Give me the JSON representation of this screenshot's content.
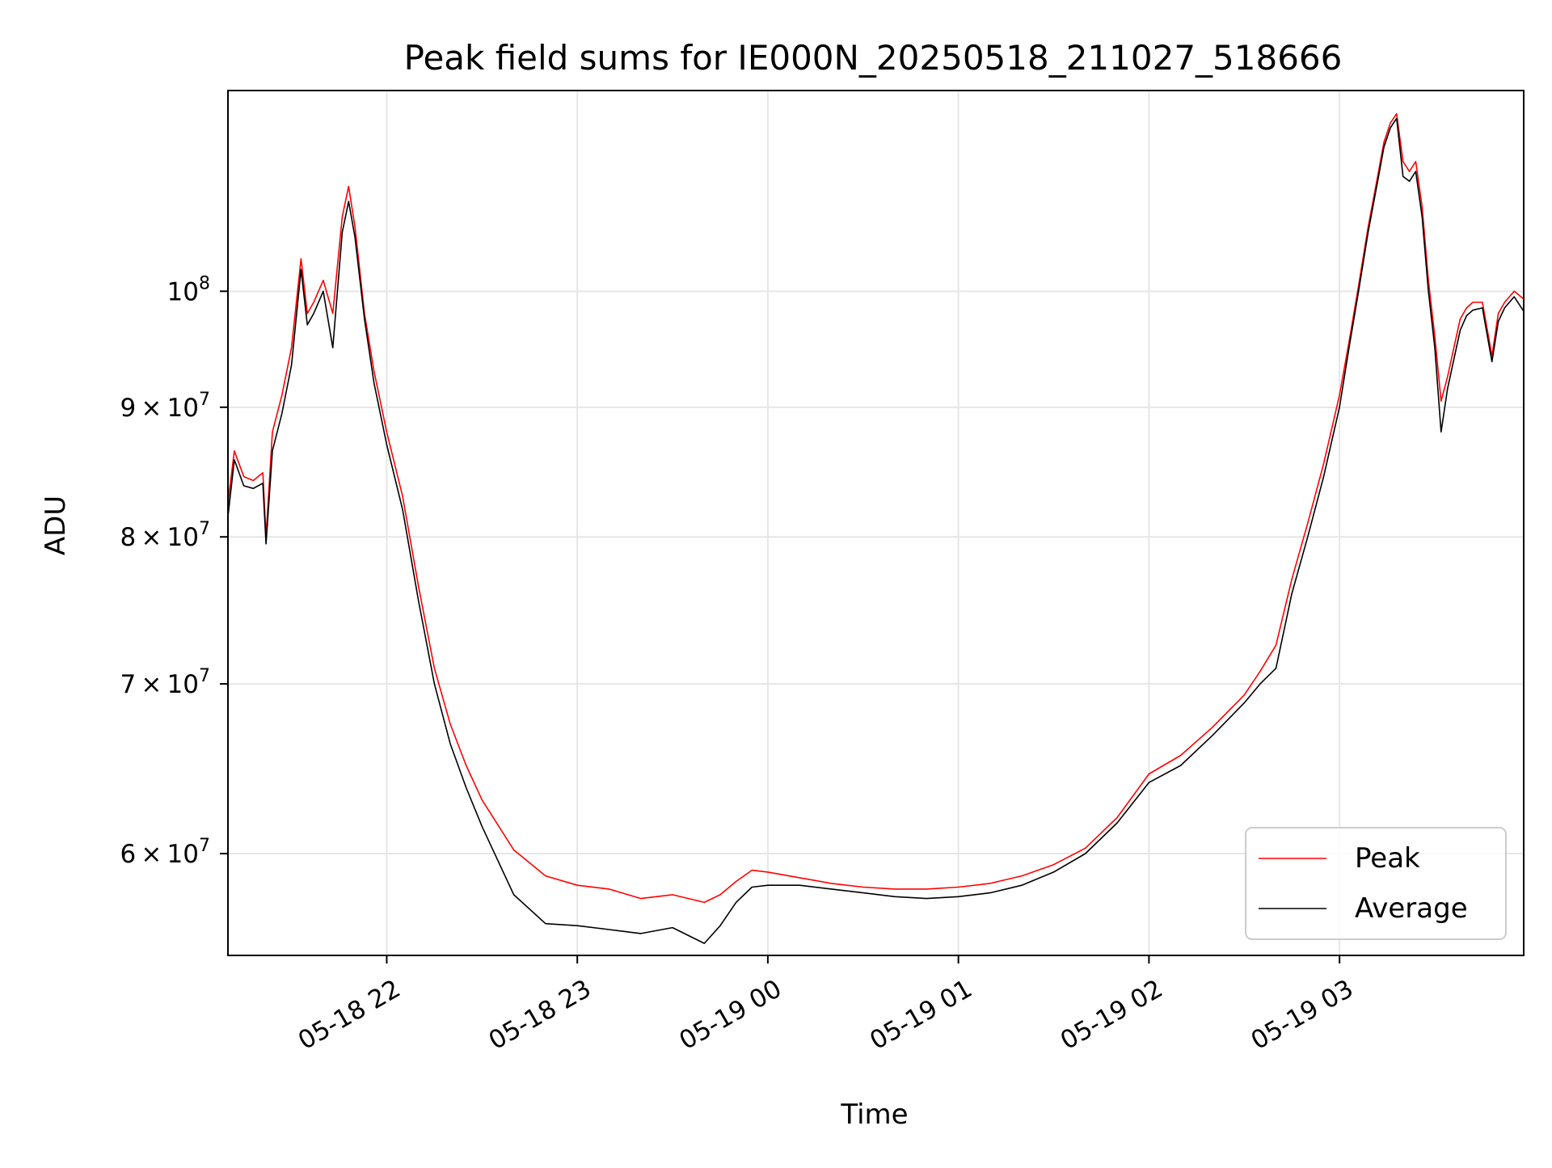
{
  "chart_data": {
    "type": "line",
    "title": "Peak field sums for IE000N_20250518_211027_518666",
    "xlabel": "Time",
    "ylabel": "ADU",
    "yscale": "log",
    "grid": true,
    "legend_placement": "lower-right",
    "xlim": [
      "2025-05-18 21:10",
      "2025-05-19 03:58"
    ],
    "ylim": [
      54700000,
      120000000
    ],
    "x_ticks": [
      {
        "value": "2025-05-18 22:00",
        "label": "05-18 22"
      },
      {
        "value": "2025-05-18 23:00",
        "label": "05-18 23"
      },
      {
        "value": "2025-05-19 00:00",
        "label": "05-19 00"
      },
      {
        "value": "2025-05-19 01:00",
        "label": "05-19 01"
      },
      {
        "value": "2025-05-19 02:00",
        "label": "05-19 02"
      },
      {
        "value": "2025-05-19 03:00",
        "label": "05-19 03"
      }
    ],
    "y_ticks": [
      {
        "value": 60000000,
        "mantissa": "6",
        "exponent": "7"
      },
      {
        "value": 70000000,
        "mantissa": "7",
        "exponent": "7"
      },
      {
        "value": 80000000,
        "mantissa": "8",
        "exponent": "7"
      },
      {
        "value": 90000000,
        "mantissa": "9",
        "exponent": "7"
      },
      {
        "value": 100000000,
        "mantissa": "",
        "exponent": "8"
      }
    ],
    "series": [
      {
        "name": "Peak",
        "color": "#ff0000",
        "x": [
          "2025-05-18 21:10",
          "2025-05-18 21:12",
          "2025-05-18 21:15",
          "2025-05-18 21:18",
          "2025-05-18 21:21",
          "2025-05-18 21:22",
          "2025-05-18 21:24",
          "2025-05-18 21:27",
          "2025-05-18 21:30",
          "2025-05-18 21:33",
          "2025-05-18 21:35",
          "2025-05-18 21:37",
          "2025-05-18 21:40",
          "2025-05-18 21:43",
          "2025-05-18 21:46",
          "2025-05-18 21:48",
          "2025-05-18 21:50",
          "2025-05-18 21:53",
          "2025-05-18 21:56",
          "2025-05-18 22:00",
          "2025-05-18 22:05",
          "2025-05-18 22:10",
          "2025-05-18 22:15",
          "2025-05-18 22:20",
          "2025-05-18 22:25",
          "2025-05-18 22:30",
          "2025-05-18 22:40",
          "2025-05-18 22:50",
          "2025-05-18 23:00",
          "2025-05-18 23:10",
          "2025-05-18 23:20",
          "2025-05-18 23:30",
          "2025-05-18 23:40",
          "2025-05-18 23:45",
          "2025-05-18 23:50",
          "2025-05-18 23:55",
          "2025-05-19 00:00",
          "2025-05-19 00:10",
          "2025-05-19 00:20",
          "2025-05-19 00:30",
          "2025-05-19 00:40",
          "2025-05-19 00:50",
          "2025-05-19 01:00",
          "2025-05-19 01:10",
          "2025-05-19 01:20",
          "2025-05-19 01:30",
          "2025-05-19 01:40",
          "2025-05-19 01:50",
          "2025-05-19 02:00",
          "2025-05-19 02:10",
          "2025-05-19 02:20",
          "2025-05-19 02:30",
          "2025-05-19 02:35",
          "2025-05-19 02:40",
          "2025-05-19 02:45",
          "2025-05-19 02:50",
          "2025-05-19 02:55",
          "2025-05-19 03:00",
          "2025-05-19 03:03",
          "2025-05-19 03:06",
          "2025-05-19 03:09",
          "2025-05-19 03:12",
          "2025-05-19 03:14",
          "2025-05-19 03:16",
          "2025-05-19 03:18",
          "2025-05-19 03:20",
          "2025-05-19 03:22",
          "2025-05-19 03:24",
          "2025-05-19 03:26",
          "2025-05-19 03:28",
          "2025-05-19 03:30",
          "2025-05-19 03:32",
          "2025-05-19 03:34",
          "2025-05-19 03:36",
          "2025-05-19 03:38",
          "2025-05-19 03:40",
          "2025-05-19 03:42",
          "2025-05-19 03:45",
          "2025-05-19 03:48",
          "2025-05-19 03:50",
          "2025-05-19 03:52",
          "2025-05-19 03:55",
          "2025-05-19 03:58"
        ],
        "values": [
          82500000,
          86500000,
          84500000,
          84200000,
          84800000,
          80000000,
          88000000,
          91000000,
          95000000,
          103000000,
          98000000,
          99000000,
          101000000,
          98000000,
          107000000,
          110000000,
          106000000,
          98000000,
          93000000,
          88000000,
          83000000,
          76500000,
          71000000,
          67500000,
          65000000,
          63000000,
          60200000,
          58800000,
          58300000,
          58100000,
          57600000,
          57800000,
          57400000,
          57800000,
          58500000,
          59100000,
          59000000,
          58700000,
          58400000,
          58200000,
          58100000,
          58100000,
          58200000,
          58400000,
          58800000,
          59400000,
          60300000,
          62000000,
          64500000,
          65600000,
          67300000,
          69300000,
          70800000,
          72500000,
          77000000,
          81000000,
          85500000,
          91000000,
          95500000,
          100500000,
          106000000,
          111000000,
          114500000,
          116500000,
          117500000,
          112500000,
          111500000,
          112500000,
          108000000,
          101000000,
          96000000,
          90500000,
          92500000,
          95000000,
          97500000,
          98500000,
          99000000,
          99000000,
          94300000,
          98000000,
          99000000,
          100000000,
          99300000
        ]
      },
      {
        "name": "Average",
        "color": "#000000",
        "x": [
          "2025-05-18 21:10",
          "2025-05-18 21:12",
          "2025-05-18 21:15",
          "2025-05-18 21:18",
          "2025-05-18 21:21",
          "2025-05-18 21:22",
          "2025-05-18 21:24",
          "2025-05-18 21:27",
          "2025-05-18 21:30",
          "2025-05-18 21:33",
          "2025-05-18 21:35",
          "2025-05-18 21:37",
          "2025-05-18 21:40",
          "2025-05-18 21:43",
          "2025-05-18 21:46",
          "2025-05-18 21:48",
          "2025-05-18 21:50",
          "2025-05-18 21:53",
          "2025-05-18 21:56",
          "2025-05-18 22:00",
          "2025-05-18 22:05",
          "2025-05-18 22:10",
          "2025-05-18 22:15",
          "2025-05-18 22:20",
          "2025-05-18 22:25",
          "2025-05-18 22:30",
          "2025-05-18 22:40",
          "2025-05-18 22:50",
          "2025-05-18 23:00",
          "2025-05-18 23:10",
          "2025-05-18 23:20",
          "2025-05-18 23:30",
          "2025-05-18 23:40",
          "2025-05-18 23:45",
          "2025-05-18 23:50",
          "2025-05-18 23:55",
          "2025-05-19 00:00",
          "2025-05-19 00:10",
          "2025-05-19 00:20",
          "2025-05-19 00:30",
          "2025-05-19 00:40",
          "2025-05-19 00:50",
          "2025-05-19 01:00",
          "2025-05-19 01:10",
          "2025-05-19 01:20",
          "2025-05-19 01:30",
          "2025-05-19 01:40",
          "2025-05-19 01:50",
          "2025-05-19 02:00",
          "2025-05-19 02:10",
          "2025-05-19 02:20",
          "2025-05-19 02:30",
          "2025-05-19 02:35",
          "2025-05-19 02:40",
          "2025-05-19 02:45",
          "2025-05-19 02:50",
          "2025-05-19 02:55",
          "2025-05-19 03:00",
          "2025-05-19 03:03",
          "2025-05-19 03:06",
          "2025-05-19 03:09",
          "2025-05-19 03:12",
          "2025-05-19 03:14",
          "2025-05-19 03:16",
          "2025-05-19 03:18",
          "2025-05-19 03:20",
          "2025-05-19 03:22",
          "2025-05-19 03:24",
          "2025-05-19 03:26",
          "2025-05-19 03:28",
          "2025-05-19 03:30",
          "2025-05-19 03:32",
          "2025-05-19 03:34",
          "2025-05-19 03:36",
          "2025-05-19 03:38",
          "2025-05-19 03:40",
          "2025-05-19 03:42",
          "2025-05-19 03:45",
          "2025-05-19 03:48",
          "2025-05-19 03:50",
          "2025-05-19 03:52",
          "2025-05-19 03:55",
          "2025-05-19 03:58"
        ],
        "values": [
          81500000,
          85800000,
          83800000,
          83600000,
          84000000,
          79500000,
          86500000,
          89500000,
          93500000,
          102000000,
          97000000,
          98000000,
          100000000,
          95000000,
          105500000,
          108500000,
          105000000,
          97500000,
          92000000,
          87000000,
          82000000,
          75500000,
          70000000,
          66300000,
          63700000,
          61500000,
          57800000,
          56300000,
          56200000,
          56000000,
          55800000,
          56100000,
          55300000,
          56200000,
          57400000,
          58200000,
          58300000,
          58300000,
          58100000,
          57900000,
          57700000,
          57600000,
          57700000,
          57900000,
          58300000,
          59000000,
          60000000,
          61700000,
          64000000,
          65000000,
          66800000,
          68800000,
          70000000,
          71000000,
          76000000,
          80000000,
          84500000,
          90000000,
          95000000,
          100000000,
          105500000,
          110500000,
          114000000,
          116000000,
          117000000,
          111000000,
          110500000,
          111500000,
          107000000,
          100000000,
          95000000,
          88000000,
          91500000,
          94000000,
          96500000,
          97800000,
          98300000,
          98500000,
          93800000,
          97300000,
          98500000,
          99500000,
          98200000
        ]
      }
    ]
  }
}
